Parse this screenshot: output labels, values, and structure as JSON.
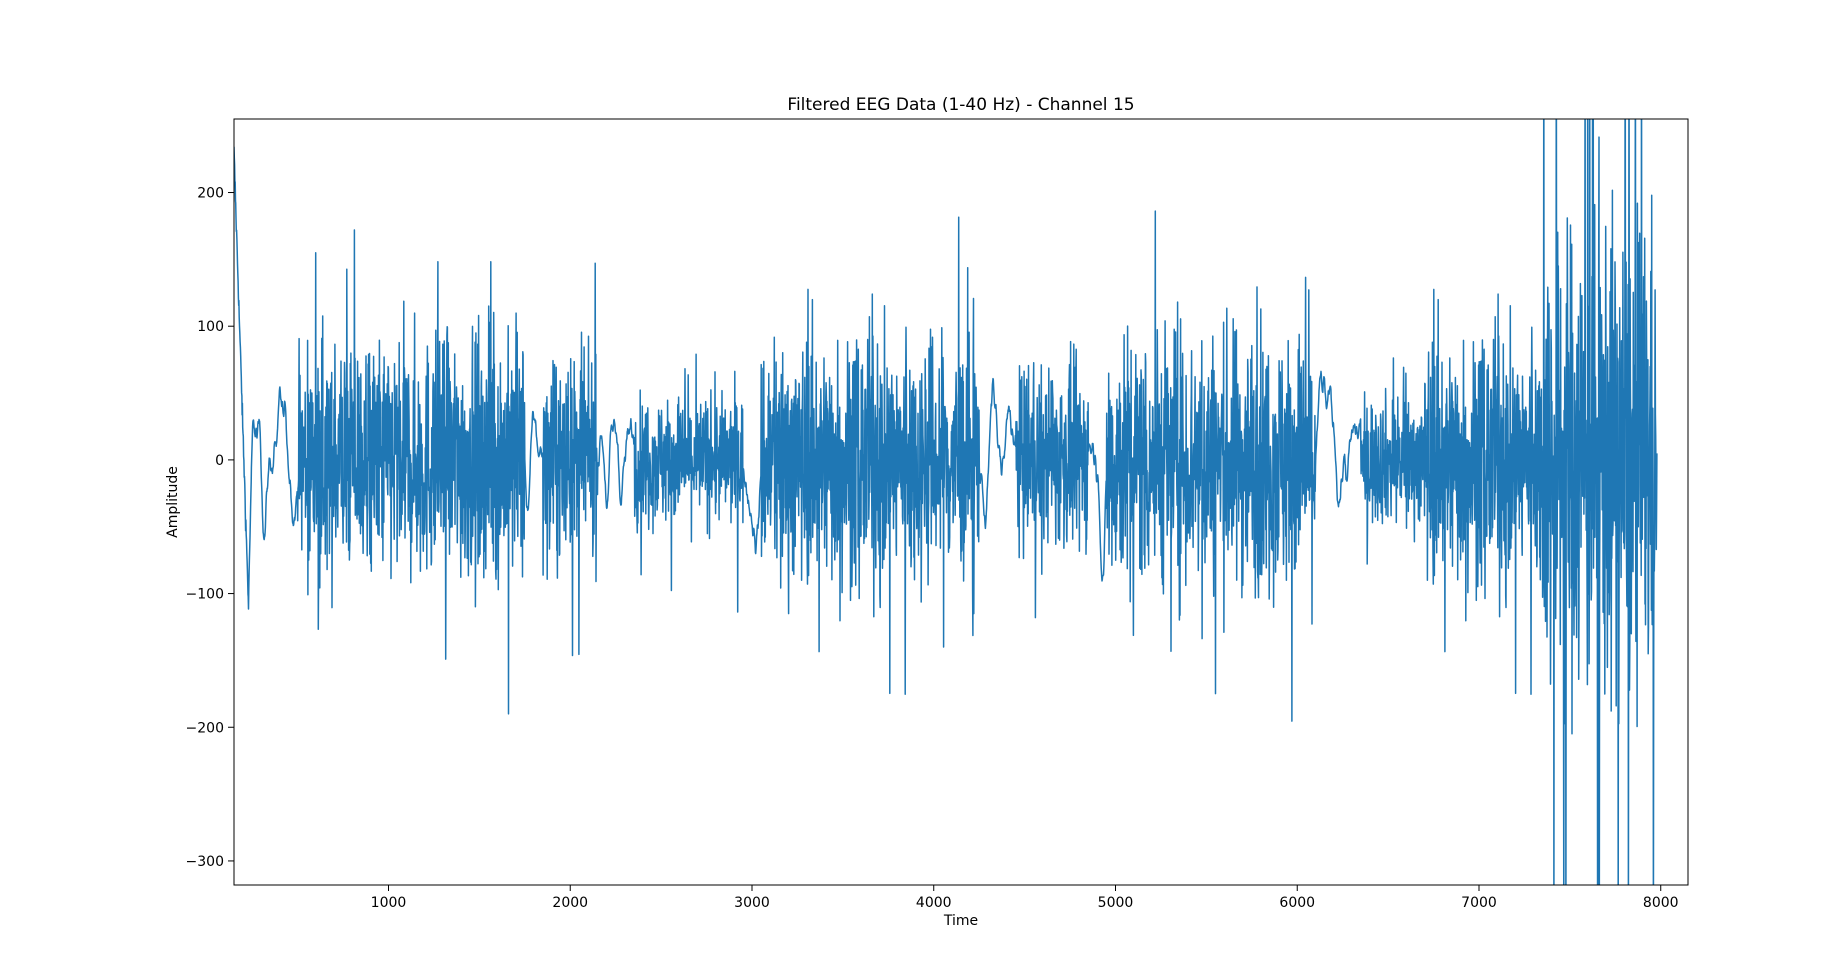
{
  "chart_data": {
    "type": "line",
    "title": "Filtered EEG Data (1-40 Hz) - Channel 15",
    "xlabel": "Time",
    "ylabel": "Amplitude",
    "xlim": [
      150,
      8150
    ],
    "ylim": [
      -318,
      255
    ],
    "x_ticks": [
      1000,
      2000,
      3000,
      4000,
      5000,
      6000,
      7000,
      8000
    ],
    "y_ticks": [
      -300,
      -200,
      -100,
      0,
      100,
      200
    ],
    "grid": false,
    "legend": "none",
    "line_color": "#1f77b4",
    "series": [
      {
        "x_start": 150,
        "x_end": 7980,
        "segments": [
          {
            "x": [
              150,
              230
            ],
            "amp": 60,
            "kind": "smooth"
          },
          {
            "x": [
              230,
              500
            ],
            "amp": 30,
            "kind": "low"
          },
          {
            "x": [
              500,
              1750
            ],
            "amp": 150,
            "kind": "burst"
          },
          {
            "x": [
              1750,
              1850
            ],
            "amp": 15,
            "kind": "low"
          },
          {
            "x": [
              1850,
              2150
            ],
            "amp": 120,
            "kind": "burst"
          },
          {
            "x": [
              2150,
              2350
            ],
            "amp": 20,
            "kind": "low"
          },
          {
            "x": [
              2350,
              2950
            ],
            "amp": 80,
            "kind": "burst"
          },
          {
            "x": [
              2950,
              3050
            ],
            "amp": 15,
            "kind": "low"
          },
          {
            "x": [
              3050,
              4250
            ],
            "amp": 150,
            "kind": "burst"
          },
          {
            "x": [
              4250,
              4450
            ],
            "amp": 40,
            "kind": "low"
          },
          {
            "x": [
              4450,
              4850
            ],
            "amp": 110,
            "kind": "burst"
          },
          {
            "x": [
              4850,
              4950
            ],
            "amp": 25,
            "kind": "low"
          },
          {
            "x": [
              4950,
              6100
            ],
            "amp": 160,
            "kind": "burst"
          },
          {
            "x": [
              6100,
              6350
            ],
            "amp": 25,
            "kind": "low"
          },
          {
            "x": [
              6350,
              6700
            ],
            "amp": 80,
            "kind": "burst"
          },
          {
            "x": [
              6700,
              7350
            ],
            "amp": 150,
            "kind": "burst"
          },
          {
            "x": [
              7350,
              7980
            ],
            "amp": 280,
            "kind": "big"
          }
        ]
      }
    ]
  }
}
